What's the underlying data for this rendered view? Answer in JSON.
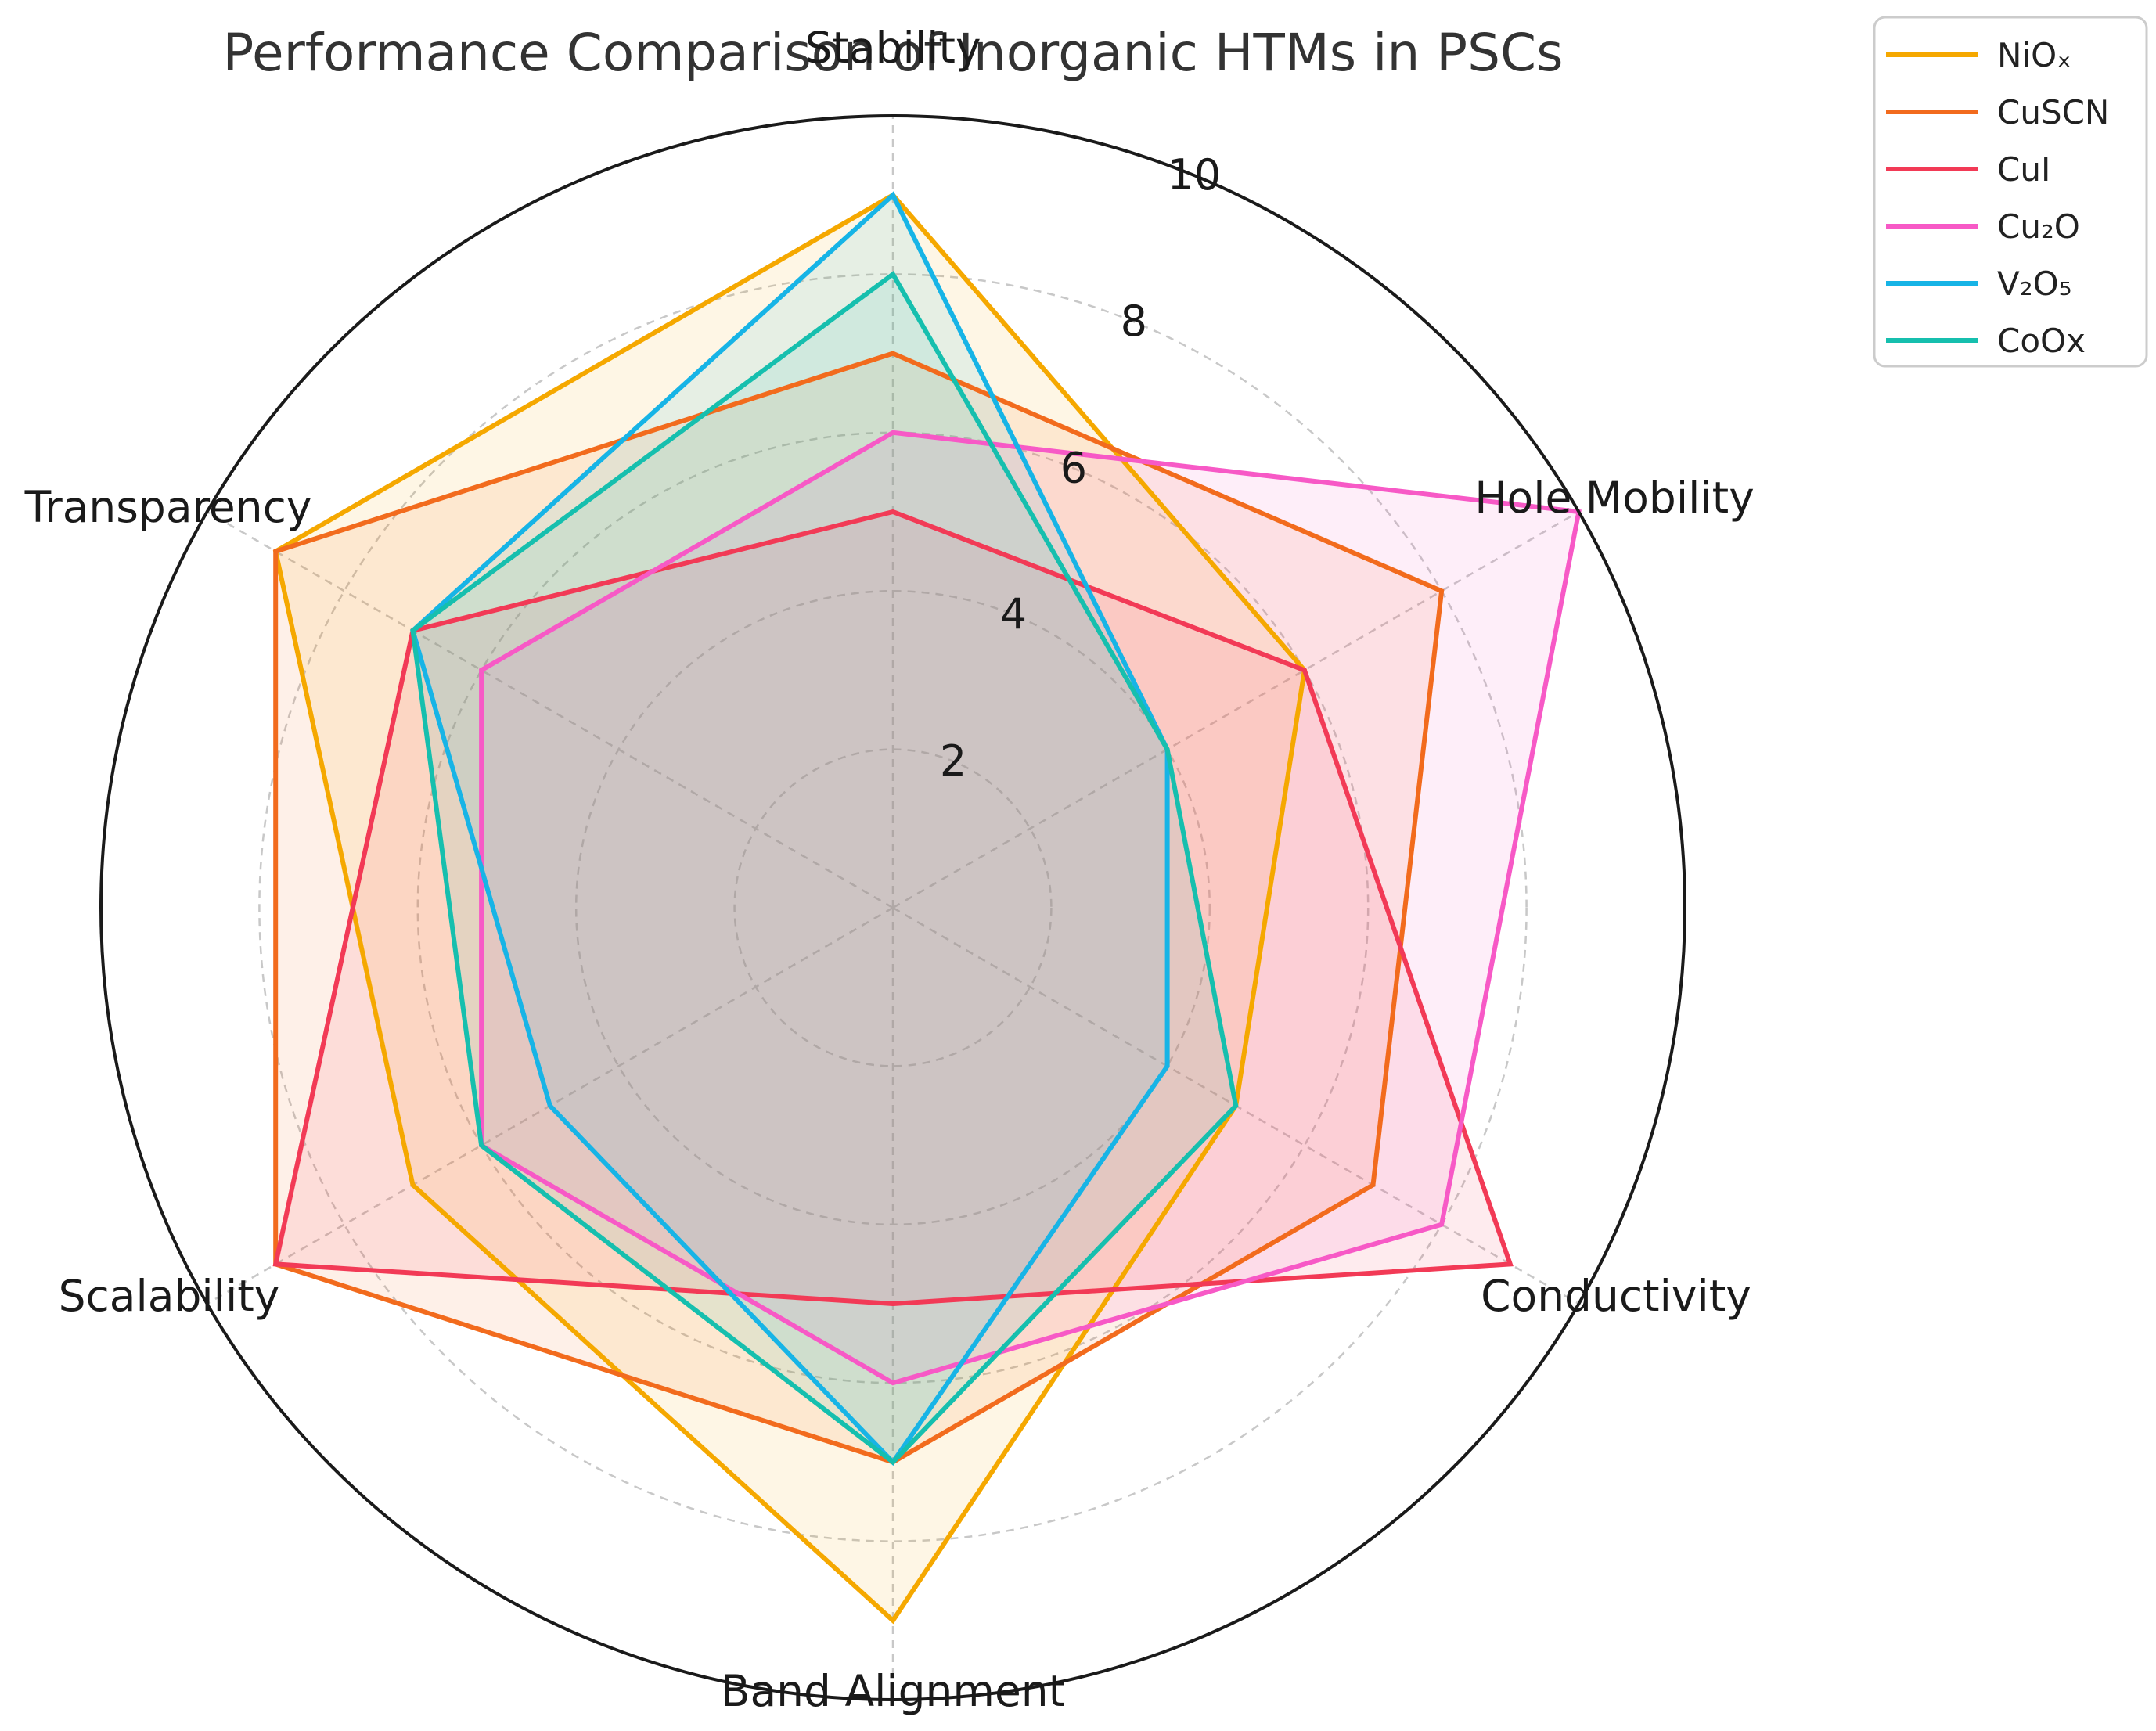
{
  "chart_data": {
    "type": "radar",
    "title": "Performance Comparison of Inorganic HTMs in PSCs",
    "axes": [
      "Stability",
      "Hole Mobility",
      "Conductivity",
      "Band Alignment",
      "Scalability",
      "Transparency"
    ],
    "rlim": [
      0,
      10
    ],
    "rticks": [
      2,
      4,
      6,
      8,
      10
    ],
    "grid": true,
    "legend_position": "top-right outside",
    "series": [
      {
        "name": "NiOₓ",
        "color": "#f5a800",
        "values": [
          9,
          6,
          5,
          9,
          7,
          9
        ]
      },
      {
        "name": "CuSCN",
        "color": "#f26b1d",
        "values": [
          7,
          8,
          7,
          7,
          9,
          9
        ]
      },
      {
        "name": "CuI",
        "color": "#f23a56",
        "values": [
          5,
          6,
          9,
          5,
          9,
          7
        ]
      },
      {
        "name": "Cu₂O",
        "color": "#f759c6",
        "values": [
          6,
          10,
          8,
          6,
          6,
          6
        ]
      },
      {
        "name": "V₂O₅",
        "color": "#17b4e6",
        "values": [
          9,
          4,
          4,
          7,
          5,
          7
        ]
      },
      {
        "name": "CoOx",
        "color": "#16bfae",
        "values": [
          8,
          4,
          5,
          7,
          6,
          7
        ]
      }
    ]
  }
}
